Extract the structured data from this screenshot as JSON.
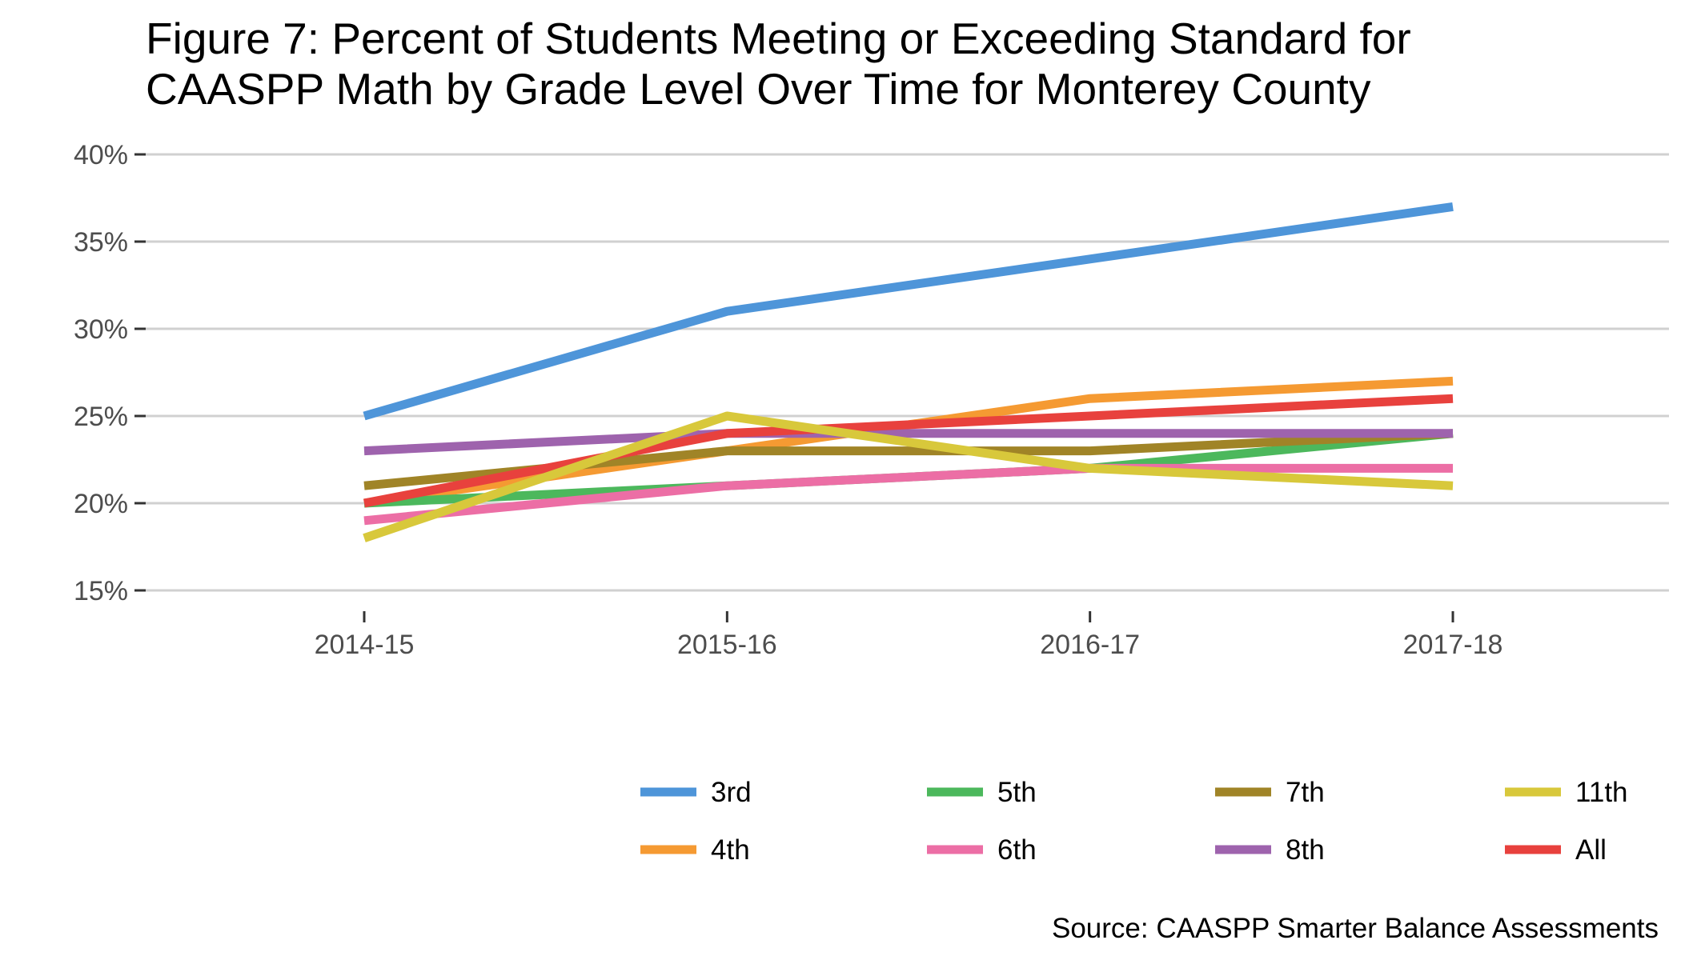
{
  "chart_data": {
    "type": "line",
    "title_lines": [
      "Figure 7: Percent of Students Meeting or Exceeding Standard for",
      "CAASPP Math by Grade Level Over Time for Monterey County"
    ],
    "xlabel": "",
    "ylabel": "",
    "x": [
      "2014-15",
      "2015-16",
      "2016-17",
      "2017-18"
    ],
    "ylim": [
      15,
      40
    ],
    "y_ticks": [
      15,
      20,
      25,
      30,
      35,
      40
    ],
    "y_tick_labels": [
      "15%",
      "20%",
      "25%",
      "30%",
      "35%",
      "40%"
    ],
    "grid": true,
    "legend_position": "bottom",
    "series": [
      {
        "name": "3rd",
        "color": "#4e95d9",
        "values": [
          25,
          31,
          34,
          37
        ]
      },
      {
        "name": "4th",
        "color": "#f59a32",
        "values": [
          20,
          23,
          26,
          27
        ]
      },
      {
        "name": "5th",
        "color": "#4cb85c",
        "values": [
          20,
          21,
          22,
          24
        ]
      },
      {
        "name": "6th",
        "color": "#ec6ea5",
        "values": [
          19,
          21,
          22,
          22
        ]
      },
      {
        "name": "7th",
        "color": "#a08427",
        "values": [
          21,
          23,
          23,
          24
        ]
      },
      {
        "name": "8th",
        "color": "#9e63ad",
        "values": [
          23,
          24,
          24,
          24
        ]
      },
      {
        "name": "All",
        "color": "#e8413d",
        "values": [
          20,
          24,
          25,
          26
        ]
      },
      {
        "name": "11th",
        "color": "#d8c83b",
        "values": [
          18,
          25,
          22,
          21
        ]
      }
    ],
    "legend_order": [
      "3rd",
      "5th",
      "7th",
      "11th",
      "4th",
      "6th",
      "8th",
      "All"
    ],
    "caption": "Source: CAASPP Smarter Balance Assessments"
  }
}
